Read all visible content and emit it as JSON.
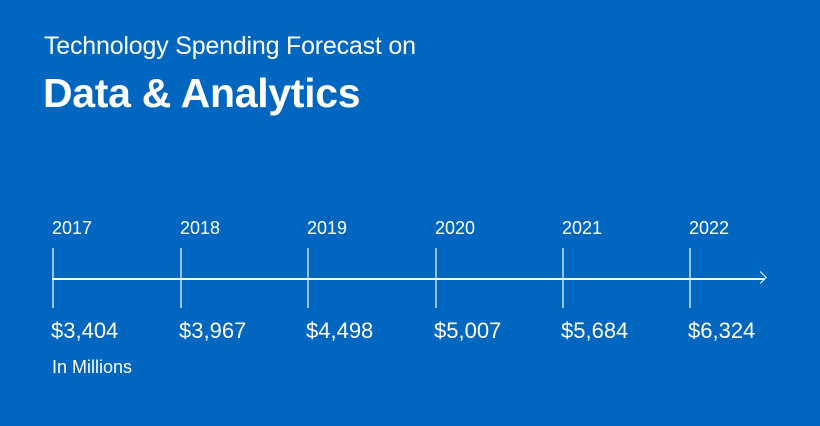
{
  "header": {
    "subtitle": "Technology Spending Forecast on",
    "title": "Data & Analytics"
  },
  "timeline": {
    "items": [
      {
        "year": "2017",
        "value": "$3,404"
      },
      {
        "year": "2018",
        "value": "$3,967"
      },
      {
        "year": "2019",
        "value": "$4,498"
      },
      {
        "year": "2020",
        "value": "$5,007"
      },
      {
        "year": "2021",
        "value": "$5,684"
      },
      {
        "year": "2022",
        "value": "$6,324"
      }
    ],
    "unit_note": "In Millions"
  },
  "colors": {
    "background": "#0066bf",
    "text": "#ffffff"
  }
}
